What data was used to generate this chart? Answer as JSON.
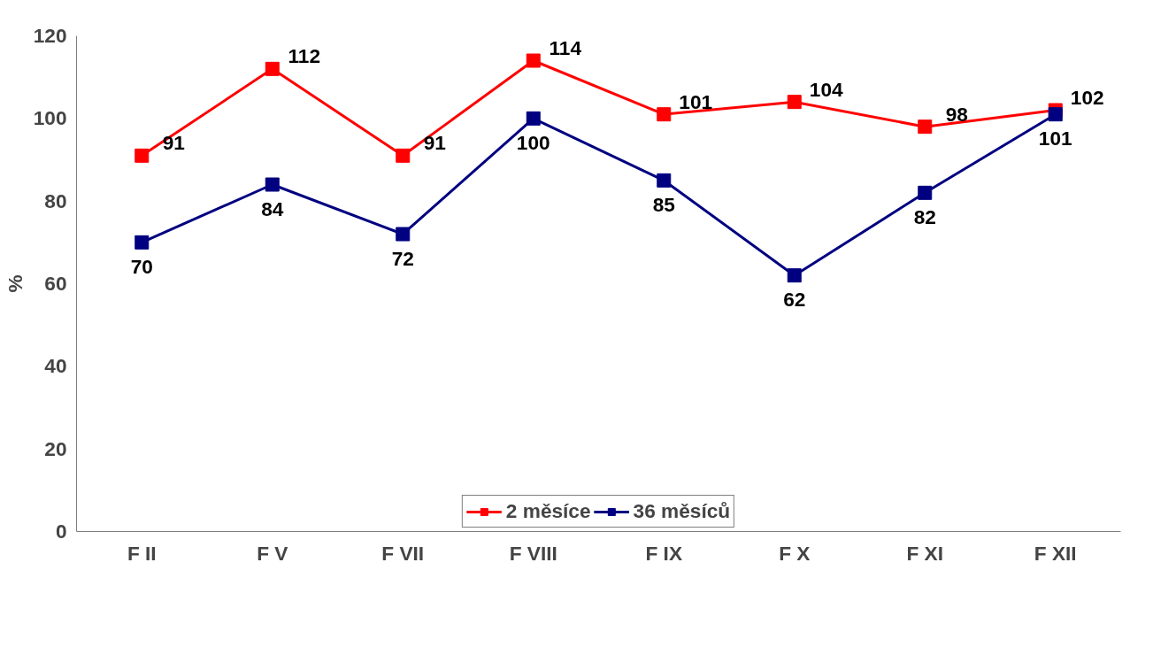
{
  "chart_data": {
    "type": "line",
    "ylabel": "%",
    "categories": [
      "F II",
      "F V",
      "F VII",
      "F VIII",
      "F IX",
      "F X",
      "F XI",
      "F XII"
    ],
    "series": [
      {
        "name": "2 měsíce",
        "color": "#ff0000",
        "values": [
          91,
          112,
          91,
          114,
          101,
          104,
          98,
          102
        ]
      },
      {
        "name": "36 měsíců",
        "color": "#000080",
        "values": [
          70,
          84,
          72,
          100,
          85,
          62,
          82,
          101
        ]
      }
    ],
    "ylim": [
      0,
      120
    ],
    "yticks": [
      0,
      20,
      40,
      60,
      80,
      100,
      120
    ],
    "grid": false,
    "legend": "bottom",
    "marker": "square",
    "line_style": "solid",
    "data_labels": true
  }
}
